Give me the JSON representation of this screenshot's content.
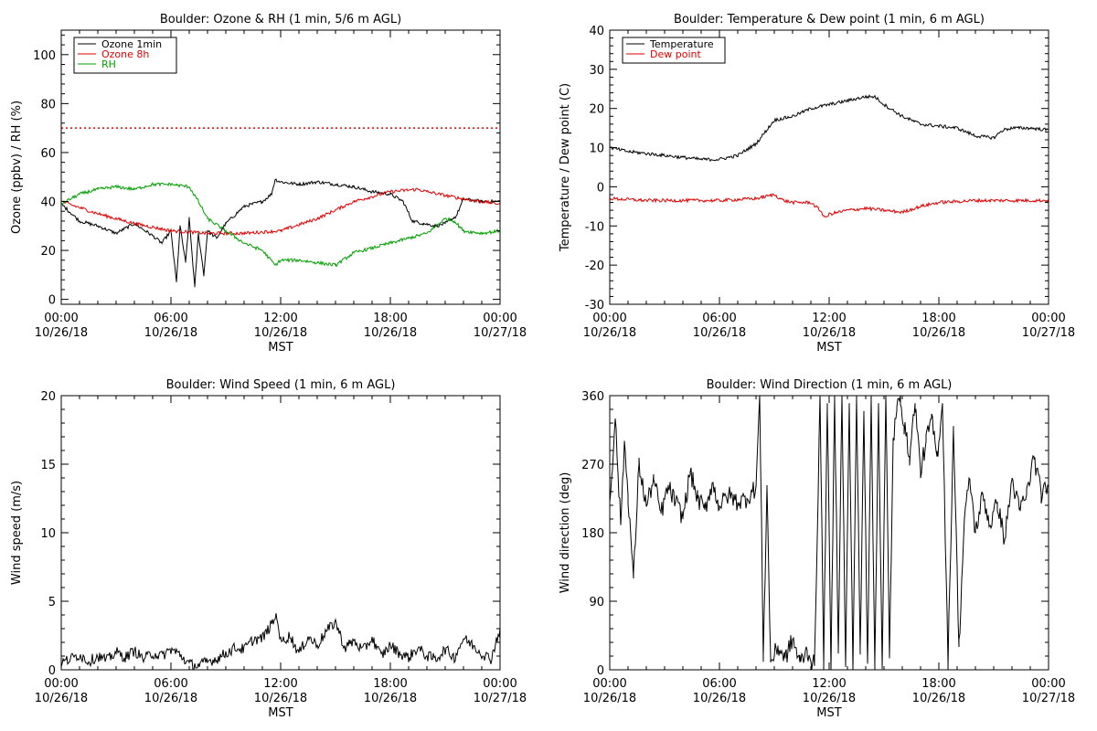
{
  "chart_data": [
    {
      "id": "ozone",
      "type": "line",
      "title": "Boulder: Ozone & RH (1 min, 5/6 m AGL)",
      "xlabel": "MST",
      "ylabel": "Ozone (ppbv) / RH (%)",
      "xlim": [
        0,
        24
      ],
      "ylim": [
        -2,
        110
      ],
      "xticks": [
        {
          "v": 0,
          "l1": "00:00",
          "l2": "10/26/18"
        },
        {
          "v": 6,
          "l1": "06:00",
          "l2": "10/26/18"
        },
        {
          "v": 12,
          "l1": "12:00",
          "l2": "10/26/18"
        },
        {
          "v": 18,
          "l1": "18:00",
          "l2": "10/26/18"
        },
        {
          "v": 24,
          "l1": "00:00",
          "l2": "10/27/18"
        }
      ],
      "yticks": [
        0,
        20,
        40,
        60,
        80,
        100
      ],
      "legend": "top-left",
      "series": [
        {
          "name": "Ozone 1min",
          "color": "#000000",
          "dashed": false,
          "x": [
            0,
            1,
            2,
            3,
            4,
            5,
            5.5,
            6,
            6.3,
            6.5,
            6.8,
            7,
            7.3,
            7.5,
            7.8,
            8,
            8.5,
            9,
            10,
            11,
            11.5,
            11.7,
            12,
            13,
            14,
            15,
            16,
            17,
            18,
            18.7,
            19.2,
            19.8,
            20.5,
            21,
            21.6,
            22,
            23,
            24
          ],
          "y": [
            39,
            32,
            30,
            27,
            31,
            26,
            23,
            28,
            7,
            30,
            15,
            33,
            5,
            27,
            10,
            28,
            25,
            31,
            38,
            40,
            43,
            49,
            48,
            47,
            48,
            47,
            46,
            44,
            43,
            40,
            32,
            31,
            30,
            31,
            34,
            41,
            40,
            40
          ]
        },
        {
          "name": "Ozone 8h",
          "color": "#e00000",
          "dashed": false,
          "x": [
            0,
            2,
            4,
            6,
            8,
            10,
            12,
            14,
            16,
            18,
            19.5,
            20,
            22,
            24
          ],
          "y": [
            40,
            35,
            31,
            28,
            27,
            27,
            28,
            33,
            40,
            44,
            45,
            44,
            41,
            39
          ]
        },
        {
          "name": "RH",
          "color": "#00a000",
          "dashed": false,
          "x": [
            0,
            1,
            2,
            3,
            4,
            5,
            6,
            7,
            7.5,
            8,
            9,
            10,
            11,
            11.7,
            12,
            13,
            14,
            15,
            16,
            17,
            18,
            19,
            20,
            21,
            21.5,
            22,
            23,
            24
          ],
          "y": [
            39,
            43,
            45,
            46,
            45,
            47,
            47,
            46,
            40,
            33,
            28,
            23,
            20,
            14,
            16,
            16,
            15,
            14,
            19,
            21,
            23,
            25,
            27,
            33,
            32,
            28,
            27,
            28
          ]
        },
        {
          "name": "",
          "color": "#e00000",
          "dashed": true,
          "legend": false,
          "x": [
            0,
            24
          ],
          "y": [
            70,
            70
          ]
        }
      ]
    },
    {
      "id": "temp",
      "type": "line",
      "title": "Boulder: Temperature & Dew point (1 min, 6 m AGL)",
      "xlabel": "MST",
      "ylabel": "Temperature / Dew point (C)",
      "xlim": [
        0,
        24
      ],
      "ylim": [
        -30,
        40
      ],
      "xticks": [
        {
          "v": 0,
          "l1": "00:00",
          "l2": "10/26/18"
        },
        {
          "v": 6,
          "l1": "06:00",
          "l2": "10/26/18"
        },
        {
          "v": 12,
          "l1": "12:00",
          "l2": "10/26/18"
        },
        {
          "v": 18,
          "l1": "18:00",
          "l2": "10/26/18"
        },
        {
          "v": 24,
          "l1": "00:00",
          "l2": "10/27/18"
        }
      ],
      "yticks": [
        -30,
        -20,
        -10,
        0,
        10,
        20,
        30,
        40
      ],
      "legend": "top-left",
      "series": [
        {
          "name": "Temperature",
          "color": "#000000",
          "dashed": false,
          "x": [
            0,
            1,
            2,
            3,
            4,
            5,
            6,
            7,
            8,
            8.5,
            9,
            10,
            11,
            12,
            13,
            14,
            14.5,
            15,
            16,
            17,
            18,
            19,
            20,
            21,
            21.5,
            22,
            23,
            24
          ],
          "y": [
            10,
            9,
            8.5,
            8,
            7.5,
            7,
            7,
            8,
            11,
            14,
            17,
            18,
            20,
            21,
            22,
            23,
            23,
            21,
            18,
            16,
            15.5,
            15,
            13,
            12.5,
            14.5,
            15,
            15,
            14.5
          ]
        },
        {
          "name": "Dew point",
          "color": "#e00000",
          "dashed": false,
          "x": [
            0,
            2,
            4,
            6,
            8,
            9,
            9.5,
            10,
            11,
            11.5,
            11.8,
            12,
            13,
            14,
            15,
            16,
            17,
            18,
            20,
            22,
            24
          ],
          "y": [
            -3,
            -3.5,
            -3.5,
            -3.5,
            -3,
            -2,
            -3.5,
            -4,
            -4,
            -6,
            -8,
            -7,
            -6,
            -5.5,
            -6,
            -6.5,
            -5,
            -4,
            -3.5,
            -3.5,
            -3.5
          ]
        }
      ]
    },
    {
      "id": "wspd",
      "type": "line",
      "title": "Boulder: Wind Speed (1 min, 6 m AGL)",
      "xlabel": "MST",
      "ylabel": "Wind speed (m/s)",
      "xlim": [
        0,
        24
      ],
      "ylim": [
        0,
        20
      ],
      "xticks": [
        {
          "v": 0,
          "l1": "00:00",
          "l2": "10/26/18"
        },
        {
          "v": 6,
          "l1": "06:00",
          "l2": "10/26/18"
        },
        {
          "v": 12,
          "l1": "12:00",
          "l2": "10/26/18"
        },
        {
          "v": 18,
          "l1": "18:00",
          "l2": "10/26/18"
        },
        {
          "v": 24,
          "l1": "00:00",
          "l2": "10/27/18"
        }
      ],
      "yticks": [
        0,
        5,
        10,
        15,
        20
      ],
      "series": [
        {
          "name": "",
          "color": "#000000",
          "dashed": false,
          "legend": false,
          "x": [
            0,
            0.5,
            1,
            1.5,
            2,
            2.5,
            3,
            3.5,
            4,
            4.5,
            5,
            5.5,
            6,
            6.5,
            7,
            7.5,
            8,
            8.5,
            9,
            9.5,
            10,
            10.5,
            11,
            11.5,
            11.8,
            12,
            12.5,
            13,
            13.5,
            14,
            14.5,
            15,
            15.5,
            16,
            16.5,
            17,
            17.5,
            18,
            18.5,
            19,
            19.5,
            20,
            20.5,
            21,
            21.5,
            22,
            22.5,
            23,
            23.5,
            24
          ],
          "y": [
            0.5,
            0.8,
            1.1,
            0.6,
            1.0,
            0.7,
            1.3,
            0.9,
            1.4,
            0.8,
            1.2,
            1.0,
            1.5,
            1.1,
            0.4,
            0.3,
            0.6,
            0.8,
            1.2,
            1.6,
            1.5,
            2.2,
            2.3,
            3.3,
            4.0,
            2.0,
            2.5,
            1.2,
            2.4,
            1.8,
            2.8,
            3.5,
            1.6,
            2.1,
            1.4,
            2.3,
            1.0,
            1.8,
            1.2,
            0.9,
            1.6,
            1.0,
            0.8,
            1.5,
            0.9,
            2.3,
            1.8,
            1.2,
            0.8,
            3.0
          ]
        }
      ]
    },
    {
      "id": "wdir",
      "type": "line",
      "title": "Boulder: Wind Direction (1 min, 6 m AGL)",
      "xlabel": "MST",
      "ylabel": "Wind direction (deg)",
      "xlim": [
        0,
        24
      ],
      "ylim": [
        0,
        360
      ],
      "xticks": [
        {
          "v": 0,
          "l1": "00:00",
          "l2": "10/26/18"
        },
        {
          "v": 6,
          "l1": "06:00",
          "l2": "10/26/18"
        },
        {
          "v": 12,
          "l1": "12:00",
          "l2": "10/26/18"
        },
        {
          "v": 18,
          "l1": "18:00",
          "l2": "10/26/18"
        },
        {
          "v": 24,
          "l1": "00:00",
          "l2": "10/27/18"
        }
      ],
      "yticks": [
        0,
        90,
        180,
        270,
        360
      ],
      "series": [
        {
          "name": "",
          "color": "#000000",
          "dashed": false,
          "legend": false,
          "x": [
            0,
            0.3,
            0.6,
            0.8,
            1.0,
            1.3,
            1.6,
            2.0,
            2.4,
            2.8,
            3.2,
            3.6,
            4.0,
            4.4,
            4.8,
            5.2,
            5.6,
            6.0,
            6.5,
            7.0,
            7.5,
            8.0,
            8.2,
            8.4,
            8.6,
            8.8,
            9.2,
            9.6,
            10.0,
            10.4,
            10.8,
            11.2,
            11.5,
            11.7,
            11.9,
            12.1,
            12.3,
            12.5,
            12.7,
            12.9,
            13.1,
            13.3,
            13.5,
            13.7,
            13.9,
            14.1,
            14.3,
            14.5,
            14.7,
            14.9,
            15.1,
            15.3,
            15.5,
            15.7,
            15.9,
            16.1,
            16.4,
            16.7,
            17.0,
            17.3,
            17.6,
            17.9,
            18.2,
            18.5,
            18.8,
            19.1,
            19.4,
            19.7,
            20.0,
            20.4,
            20.8,
            21.2,
            21.6,
            22.0,
            22.4,
            22.8,
            23.2,
            23.6,
            24.0
          ],
          "y": [
            220,
            330,
            190,
            300,
            230,
            120,
            270,
            215,
            250,
            205,
            240,
            220,
            200,
            260,
            225,
            210,
            245,
            215,
            230,
            220,
            225,
            240,
            360,
            20,
            240,
            10,
            30,
            15,
            40,
            10,
            25,
            5,
            360,
            10,
            350,
            0,
            360,
            30,
            360,
            5,
            350,
            0,
            360,
            20,
            340,
            10,
            360,
            0,
            350,
            5,
            360,
            15,
            300,
            340,
            360,
            320,
            280,
            350,
            260,
            300,
            330,
            280,
            350,
            10,
            320,
            30,
            200,
            250,
            180,
            230,
            190,
            220,
            170,
            250,
            210,
            230,
            280,
            230,
            240
          ]
        }
      ]
    }
  ]
}
